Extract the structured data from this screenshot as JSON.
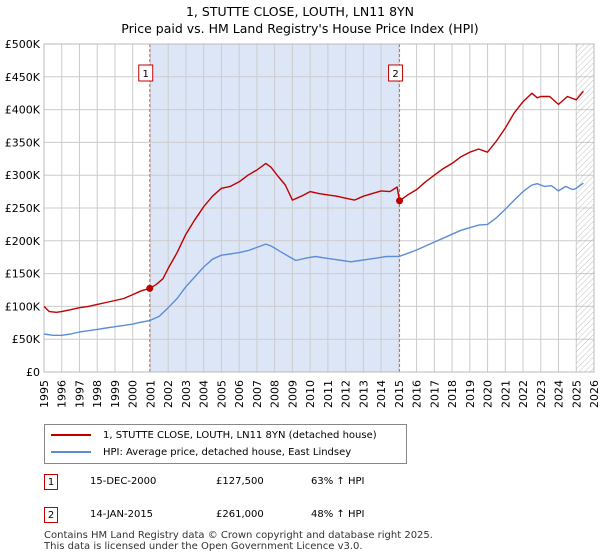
{
  "title_line1": "1, STUTTE CLOSE, LOUTH, LN11 8YN",
  "title_line2": "Price paid vs. HM Land Registry's House Price Index (HPI)",
  "colors": {
    "property": "#c00000",
    "hpi": "#5b8dd6",
    "shade": "#dde6f7",
    "grid": "#cccccc",
    "hatch": "#999999"
  },
  "chart_data": {
    "type": "line",
    "x_range": [
      1995,
      2026
    ],
    "y_range": [
      0,
      500000
    ],
    "y_ticks": [
      {
        "value": 0,
        "label": "£0"
      },
      {
        "value": 50000,
        "label": "£50K"
      },
      {
        "value": 100000,
        "label": "£100K"
      },
      {
        "value": 150000,
        "label": "£150K"
      },
      {
        "value": 200000,
        "label": "£200K"
      },
      {
        "value": 250000,
        "label": "£250K"
      },
      {
        "value": 300000,
        "label": "£300K"
      },
      {
        "value": 350000,
        "label": "£350K"
      },
      {
        "value": 400000,
        "label": "£400K"
      },
      {
        "value": 450000,
        "label": "£450K"
      },
      {
        "value": 500000,
        "label": "£500K"
      }
    ],
    "x_ticks": [
      "1995",
      "1996",
      "1997",
      "1998",
      "1999",
      "2000",
      "2001",
      "2002",
      "2003",
      "2004",
      "2005",
      "2006",
      "2007",
      "2008",
      "2009",
      "2010",
      "2011",
      "2012",
      "2013",
      "2014",
      "2015",
      "2016",
      "2017",
      "2018",
      "2019",
      "2020",
      "2021",
      "2022",
      "2023",
      "2024",
      "2025",
      "2026"
    ],
    "shaded_period": [
      2000.96,
      2015.04
    ],
    "hatched_from": 2025.0,
    "grid": true,
    "series": [
      {
        "name": "1, STUTTE CLOSE, LOUTH, LN11 8YN (detached house)",
        "color": "#c00000",
        "points": [
          [
            1995.0,
            100000
          ],
          [
            1995.3,
            92000
          ],
          [
            1995.7,
            91000
          ],
          [
            1996.0,
            92000
          ],
          [
            1996.5,
            95000
          ],
          [
            1997.0,
            98000
          ],
          [
            1997.5,
            100000
          ],
          [
            1998.0,
            103000
          ],
          [
            1998.5,
            106000
          ],
          [
            1999.0,
            109000
          ],
          [
            1999.5,
            112000
          ],
          [
            2000.0,
            118000
          ],
          [
            2000.5,
            124000
          ],
          [
            2000.96,
            127500
          ],
          [
            2001.3,
            133000
          ],
          [
            2001.7,
            142000
          ],
          [
            2002.0,
            158000
          ],
          [
            2002.5,
            182000
          ],
          [
            2003.0,
            210000
          ],
          [
            2003.5,
            232000
          ],
          [
            2004.0,
            252000
          ],
          [
            2004.5,
            268000
          ],
          [
            2005.0,
            280000
          ],
          [
            2005.5,
            283000
          ],
          [
            2006.0,
            290000
          ],
          [
            2006.5,
            300000
          ],
          [
            2007.0,
            308000
          ],
          [
            2007.5,
            318000
          ],
          [
            2007.8,
            312000
          ],
          [
            2008.2,
            298000
          ],
          [
            2008.6,
            285000
          ],
          [
            2009.0,
            262000
          ],
          [
            2009.5,
            268000
          ],
          [
            2010.0,
            275000
          ],
          [
            2010.5,
            272000
          ],
          [
            2011.0,
            270000
          ],
          [
            2011.5,
            268000
          ],
          [
            2012.0,
            265000
          ],
          [
            2012.5,
            262000
          ],
          [
            2013.0,
            268000
          ],
          [
            2013.5,
            272000
          ],
          [
            2014.0,
            276000
          ],
          [
            2014.5,
            275000
          ],
          [
            2014.9,
            282000
          ],
          [
            2015.04,
            261000
          ],
          [
            2015.5,
            270000
          ],
          [
            2016.0,
            278000
          ],
          [
            2016.5,
            290000
          ],
          [
            2017.0,
            300000
          ],
          [
            2017.5,
            310000
          ],
          [
            2018.0,
            318000
          ],
          [
            2018.5,
            328000
          ],
          [
            2019.0,
            335000
          ],
          [
            2019.5,
            340000
          ],
          [
            2020.0,
            335000
          ],
          [
            2020.5,
            352000
          ],
          [
            2021.0,
            372000
          ],
          [
            2021.5,
            395000
          ],
          [
            2022.0,
            412000
          ],
          [
            2022.5,
            425000
          ],
          [
            2022.8,
            418000
          ],
          [
            2023.0,
            420000
          ],
          [
            2023.5,
            420000
          ],
          [
            2024.0,
            408000
          ],
          [
            2024.5,
            420000
          ],
          [
            2025.0,
            415000
          ],
          [
            2025.4,
            428000
          ]
        ]
      },
      {
        "name": "HPI: Average price, detached house, East Lindsey",
        "color": "#5b8dd6",
        "points": [
          [
            1995.0,
            58000
          ],
          [
            1995.5,
            56000
          ],
          [
            1996.0,
            56000
          ],
          [
            1996.5,
            58000
          ],
          [
            1997.0,
            61000
          ],
          [
            1997.5,
            63000
          ],
          [
            1998.0,
            65000
          ],
          [
            1998.5,
            67000
          ],
          [
            1999.0,
            69000
          ],
          [
            1999.5,
            71000
          ],
          [
            2000.0,
            73000
          ],
          [
            2000.5,
            76000
          ],
          [
            2000.96,
            78300
          ],
          [
            2001.5,
            85000
          ],
          [
            2002.0,
            98000
          ],
          [
            2002.5,
            112000
          ],
          [
            2003.0,
            130000
          ],
          [
            2003.5,
            145000
          ],
          [
            2004.0,
            160000
          ],
          [
            2004.5,
            172000
          ],
          [
            2005.0,
            178000
          ],
          [
            2005.5,
            180000
          ],
          [
            2006.0,
            182000
          ],
          [
            2006.5,
            185000
          ],
          [
            2007.0,
            190000
          ],
          [
            2007.5,
            195000
          ],
          [
            2007.8,
            192000
          ],
          [
            2008.3,
            184000
          ],
          [
            2008.8,
            176000
          ],
          [
            2009.2,
            170000
          ],
          [
            2009.8,
            174000
          ],
          [
            2010.3,
            176000
          ],
          [
            2010.8,
            174000
          ],
          [
            2011.3,
            172000
          ],
          [
            2011.8,
            170000
          ],
          [
            2012.3,
            168000
          ],
          [
            2012.8,
            170000
          ],
          [
            2013.3,
            172000
          ],
          [
            2013.8,
            174000
          ],
          [
            2014.3,
            176000
          ],
          [
            2015.04,
            176200
          ],
          [
            2015.5,
            181000
          ],
          [
            2016.0,
            186000
          ],
          [
            2016.5,
            192000
          ],
          [
            2017.0,
            198000
          ],
          [
            2017.5,
            204000
          ],
          [
            2018.0,
            210000
          ],
          [
            2018.5,
            216000
          ],
          [
            2019.0,
            220000
          ],
          [
            2019.5,
            224000
          ],
          [
            2020.0,
            225000
          ],
          [
            2020.5,
            235000
          ],
          [
            2021.0,
            248000
          ],
          [
            2021.5,
            262000
          ],
          [
            2022.0,
            275000
          ],
          [
            2022.5,
            285000
          ],
          [
            2022.8,
            287000
          ],
          [
            2023.2,
            283000
          ],
          [
            2023.6,
            284000
          ],
          [
            2024.0,
            276000
          ],
          [
            2024.4,
            283000
          ],
          [
            2024.8,
            278000
          ],
          [
            2025.0,
            280000
          ],
          [
            2025.4,
            288000
          ]
        ]
      }
    ],
    "annotations": [
      {
        "label": "1",
        "x": 2000.96,
        "y": 127500
      },
      {
        "label": "2",
        "x": 2015.04,
        "y": 261000
      }
    ]
  },
  "legend": {
    "property_label": "1, STUTTE CLOSE, LOUTH, LN11 8YN (detached house)",
    "hpi_label": "HPI: Average price, detached house, East Lindsey"
  },
  "sales": [
    {
      "num": "1",
      "date": "15-DEC-2000",
      "price": "£127,500",
      "hpi": "63% ↑ HPI"
    },
    {
      "num": "2",
      "date": "14-JAN-2015",
      "price": "£261,000",
      "hpi": "48% ↑ HPI"
    }
  ],
  "footer_line1": "Contains HM Land Registry data © Crown copyright and database right 2025.",
  "footer_line2": "This data is licensed under the Open Government Licence v3.0."
}
